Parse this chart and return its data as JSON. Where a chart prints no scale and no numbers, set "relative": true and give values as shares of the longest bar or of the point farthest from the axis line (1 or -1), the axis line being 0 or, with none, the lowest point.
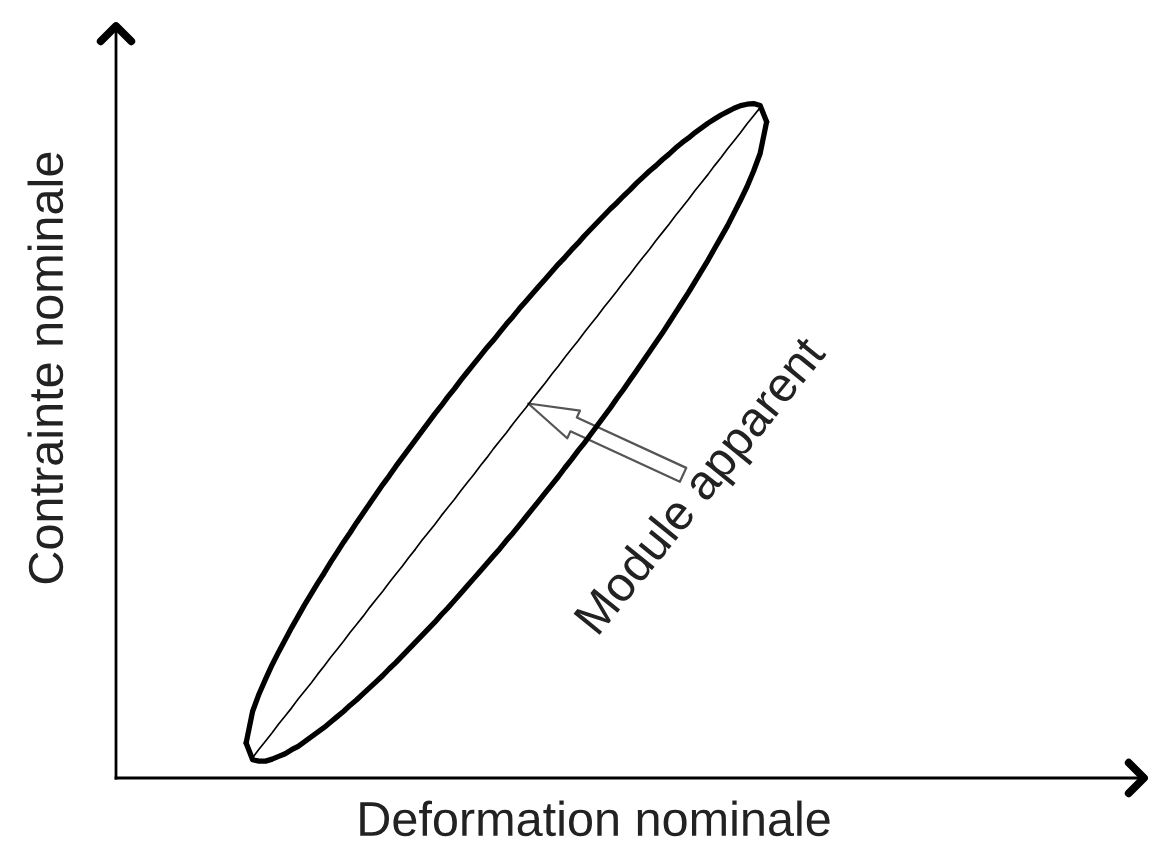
{
  "chart_data": {
    "type": "line",
    "xlabel": "Deformation nominale",
    "ylabel": "Contrainte nominale",
    "relative": true,
    "categories": [
      null,
      null,
      null,
      null,
      null,
      null,
      null,
      null,
      null,
      null,
      null,
      null,
      null,
      null,
      null,
      null,
      null,
      null,
      null,
      null,
      null,
      null,
      null,
      null,
      null,
      null,
      null,
      null,
      null,
      null,
      null,
      null,
      null,
      null,
      null,
      null,
      null,
      null,
      null,
      null,
      null,
      null,
      null,
      null,
      null,
      null,
      null,
      null,
      null,
      null,
      null,
      null,
      null,
      null,
      null,
      null,
      null,
      null,
      null,
      null,
      null,
      null,
      null,
      null,
      null,
      null,
      null,
      null,
      null,
      null,
      null,
      null,
      null,
      null,
      null,
      null,
      null,
      null,
      null,
      null,
      null,
      null,
      null,
      null,
      null,
      null,
      null,
      null,
      null,
      null,
      null,
      null,
      null,
      null,
      null,
      null,
      null,
      null,
      null,
      null,
      null,
      null,
      null,
      null,
      null,
      null,
      null,
      null,
      null,
      null,
      null,
      null,
      null,
      null,
      null,
      null,
      null,
      null,
      null,
      null,
      null,
      null,
      null,
      null,
      null,
      null,
      null,
      null,
      null,
      null,
      null,
      null,
      null,
      null,
      null,
      null,
      null,
      null,
      null,
      null,
      null,
      null,
      null,
      null,
      null,
      null,
      null,
      null,
      null,
      null,
      null,
      null,
      null,
      null,
      null,
      null,
      null,
      null,
      null
    ],
    "series": [
      {
        "color": "#000000",
        "values": [
          null,
          null,
          null,
          null,
          null,
          null,
          null,
          null,
          null,
          null,
          null,
          null,
          null,
          null,
          null,
          null,
          null,
          null,
          null,
          null,
          0.052,
          0.099,
          0.125,
          0.147,
          0.168,
          0.187,
          0.205,
          0.223,
          0.24,
          0.257,
          0.273,
          0.289,
          0.304,
          0.32,
          0.335,
          0.35,
          0.364,
          0.379,
          0.393,
          0.407,
          0.421,
          0.435,
          0.448,
          0.462,
          0.475,
          0.488,
          0.501,
          0.514,
          0.527,
          0.54,
          0.552,
          0.565,
          0.577,
          0.59,
          0.602,
          0.614,
          0.626,
          0.638,
          0.649,
          0.661,
          0.673,
          0.684,
          0.696,
          0.707,
          0.718,
          0.729,
          0.74,
          0.751,
          0.762,
          0.772,
          0.783,
          0.793,
          0.804,
          0.814,
          0.824,
          0.834,
          0.844,
          0.853,
          0.863,
          0.872,
          0.882,
          0.891,
          0.9,
          0.908,
          0.917,
          0.925,
          0.934,
          0.942,
          0.949,
          0.957,
          0.964,
          0.971,
          0.977,
          0.983,
          0.988,
          0.993,
          0.997,
          0.999,
          1.0,
          0.997,
          0.973,
          null,
          null,
          null,
          null,
          null,
          null,
          null,
          null,
          null,
          null,
          null,
          null,
          null,
          null,
          null,
          null,
          null,
          null,
          null,
          null,
          null,
          null,
          null,
          null,
          null,
          null,
          null,
          null,
          null,
          null,
          null,
          null,
          null,
          null,
          null,
          null,
          null,
          null,
          null,
          null,
          null,
          null,
          null,
          null,
          null,
          null,
          null,
          null,
          null,
          null,
          null,
          null,
          null,
          null,
          null,
          null,
          null,
          null
        ]
      },
      {
        "color": "#000000",
        "values": [
          null,
          null,
          null,
          null,
          null,
          null,
          null,
          null,
          null,
          null,
          null,
          null,
          null,
          null,
          null,
          null,
          null,
          null,
          null,
          null,
          0.052,
          0.027,
          0.025,
          0.025,
          0.028,
          0.032,
          0.036,
          0.042,
          0.047,
          0.054,
          0.061,
          0.068,
          0.075,
          0.083,
          0.091,
          0.099,
          0.108,
          0.116,
          0.125,
          0.134,
          0.143,
          0.152,
          0.162,
          0.171,
          0.181,
          0.191,
          0.201,
          0.211,
          0.221,
          0.231,
          0.242,
          0.252,
          0.263,
          0.274,
          0.285,
          0.296,
          0.307,
          0.318,
          0.329,
          0.34,
          0.352,
          0.363,
          0.375,
          0.387,
          0.399,
          0.411,
          0.423,
          0.435,
          0.447,
          0.46,
          0.472,
          0.485,
          0.497,
          0.51,
          0.523,
          0.536,
          0.549,
          0.563,
          0.576,
          0.59,
          0.604,
          0.618,
          0.632,
          0.646,
          0.66,
          0.675,
          0.69,
          0.705,
          0.72,
          0.736,
          0.752,
          0.768,
          0.785,
          0.802,
          0.819,
          0.838,
          0.857,
          0.877,
          0.9,
          0.926,
          0.973,
          null,
          null,
          null,
          null,
          null,
          null,
          null,
          null,
          null,
          null,
          null,
          null,
          null,
          null,
          null,
          null,
          null,
          null,
          null,
          null,
          null,
          null,
          null,
          null,
          null,
          null,
          null,
          null,
          null,
          null,
          null,
          null,
          null,
          null,
          null,
          null,
          null,
          null,
          null,
          null,
          null,
          null,
          null,
          null,
          null,
          null,
          null,
          null,
          null,
          null,
          null,
          null,
          null,
          null,
          null,
          null,
          null,
          null
        ]
      },
      {
        "color": "#000000",
        "values": [
          null,
          null,
          null,
          null,
          null,
          null,
          null,
          null,
          null,
          null,
          null,
          null,
          null,
          null,
          null,
          null,
          null,
          null,
          null,
          null,
          null,
          0.03,
          0.043,
          0.055,
          0.067,
          0.08,
          0.092,
          0.104,
          0.117,
          0.129,
          0.141,
          0.154,
          0.166,
          0.179,
          0.191,
          0.203,
          0.216,
          0.228,
          0.24,
          0.253,
          0.265,
          0.277,
          0.29,
          0.302,
          0.314,
          0.327,
          0.339,
          0.352,
          0.364,
          0.376,
          0.389,
          0.401,
          0.413,
          0.426,
          0.438,
          0.45,
          0.463,
          0.475,
          0.488,
          0.5,
          0.512,
          0.525,
          0.537,
          0.549,
          0.562,
          0.574,
          0.586,
          0.599,
          0.611,
          0.624,
          0.636,
          0.648,
          0.661,
          0.673,
          0.685,
          0.698,
          0.71,
          0.722,
          0.735,
          0.747,
          0.76,
          0.772,
          0.784,
          0.797,
          0.809,
          0.821,
          0.834,
          0.846,
          0.858,
          0.871,
          0.883,
          0.895,
          0.908,
          0.92,
          0.933,
          0.945,
          0.957,
          0.97,
          0.982,
          0.994,
          null,
          null,
          null,
          null,
          null,
          null,
          null,
          null,
          null,
          null,
          null,
          null,
          null,
          null,
          null,
          null,
          null,
          null,
          null,
          null,
          null,
          null,
          null,
          null,
          null,
          null,
          null,
          null,
          null,
          null,
          null,
          null,
          null,
          null,
          null,
          null,
          null,
          null,
          null,
          null,
          null,
          null,
          null,
          null,
          null,
          null,
          null,
          null,
          null,
          null,
          null,
          null,
          null,
          null,
          null,
          null,
          null,
          null,
          null
        ]
      }
    ],
    "annotations": [
      "Module apparent"
    ]
  }
}
